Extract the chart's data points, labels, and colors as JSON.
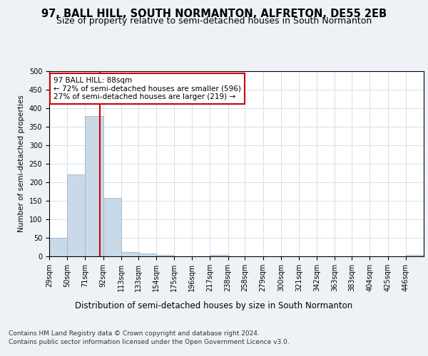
{
  "title": "97, BALL HILL, SOUTH NORMANTON, ALFRETON, DE55 2EB",
  "subtitle": "Size of property relative to semi-detached houses in South Normanton",
  "xlabel": "Distribution of semi-detached houses by size in South Normanton",
  "ylabel": "Number of semi-detached properties",
  "footer1": "Contains HM Land Registry data © Crown copyright and database right 2024.",
  "footer2": "Contains public sector information licensed under the Open Government Licence v3.0.",
  "property_label": "97 BALL HILL: 88sqm",
  "pct_smaller": 72,
  "count_smaller": 596,
  "pct_larger": 27,
  "count_larger": 219,
  "bin_labels": [
    "29sqm",
    "50sqm",
    "71sqm",
    "92sqm",
    "113sqm",
    "133sqm",
    "154sqm",
    "175sqm",
    "196sqm",
    "217sqm",
    "238sqm",
    "258sqm",
    "279sqm",
    "300sqm",
    "321sqm",
    "342sqm",
    "363sqm",
    "383sqm",
    "404sqm",
    "425sqm",
    "446sqm"
  ],
  "bin_edges": [
    29,
    50,
    71,
    92,
    113,
    133,
    154,
    175,
    196,
    217,
    238,
    258,
    279,
    300,
    321,
    342,
    363,
    383,
    404,
    425,
    446
  ],
  "bar_heights": [
    50,
    221,
    379,
    157,
    12,
    8,
    4,
    0,
    0,
    4,
    0,
    0,
    0,
    0,
    0,
    0,
    0,
    0,
    0,
    0,
    4
  ],
  "bar_color": "#c9d9e8",
  "bar_edge_color": "#a0b8cc",
  "vline_color": "#cc0000",
  "vline_x": 88,
  "ylim": [
    0,
    500
  ],
  "yticks": [
    0,
    50,
    100,
    150,
    200,
    250,
    300,
    350,
    400,
    450,
    500
  ],
  "bg_color": "#eef2f7",
  "plot_bg_color": "#ffffff",
  "annotation_box_color": "#cc0000",
  "title_fontsize": 10.5,
  "subtitle_fontsize": 9,
  "xlabel_fontsize": 8.5,
  "ylabel_fontsize": 7.5,
  "tick_fontsize": 7,
  "annotation_fontsize": 7.5,
  "footer_fontsize": 6.5,
  "grid_color": "#c8d4e0"
}
